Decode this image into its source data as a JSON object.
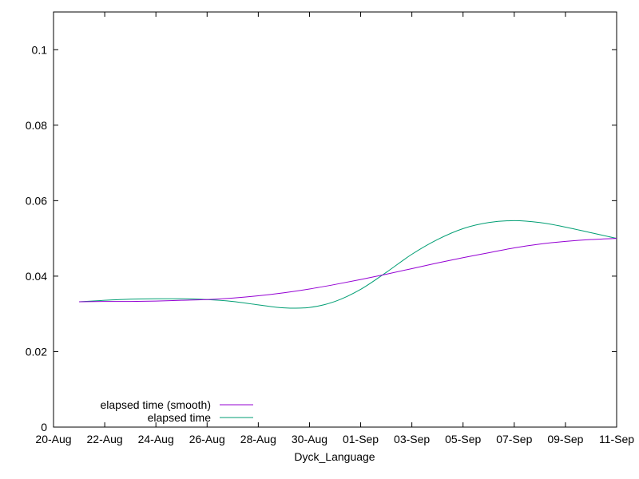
{
  "chart_data": {
    "type": "line",
    "xlabel": "Dyck_Language",
    "ylabel": "",
    "title": "",
    "x_axis": {
      "kind": "date",
      "range": [
        "2023-08-20",
        "2023-09-11"
      ],
      "ticks": [
        {
          "date": "2023-08-20",
          "label": "20-Aug"
        },
        {
          "date": "2023-08-22",
          "label": "22-Aug"
        },
        {
          "date": "2023-08-24",
          "label": "24-Aug"
        },
        {
          "date": "2023-08-26",
          "label": "26-Aug"
        },
        {
          "date": "2023-08-28",
          "label": "28-Aug"
        },
        {
          "date": "2023-08-30",
          "label": "30-Aug"
        },
        {
          "date": "2023-09-01",
          "label": "01-Sep"
        },
        {
          "date": "2023-09-03",
          "label": "03-Sep"
        },
        {
          "date": "2023-09-05",
          "label": "05-Sep"
        },
        {
          "date": "2023-09-07",
          "label": "07-Sep"
        },
        {
          "date": "2023-09-09",
          "label": "09-Sep"
        },
        {
          "date": "2023-09-11",
          "label": "11-Sep"
        }
      ]
    },
    "y_axis": {
      "range": [
        0,
        0.11
      ],
      "ticks": [
        {
          "value": 0,
          "label": "0"
        },
        {
          "value": 0.02,
          "label": "0.02"
        },
        {
          "value": 0.04,
          "label": "0.04"
        },
        {
          "value": 0.06,
          "label": "0.06"
        },
        {
          "value": 0.08,
          "label": "0.08"
        },
        {
          "value": 0.1,
          "label": "0.1"
        }
      ]
    },
    "grid": false,
    "legend_position": "bottom-left",
    "series": [
      {
        "name": "elapsed time (smooth)",
        "color": "#9400d3",
        "points": [
          [
            "2023-08-21",
            0.0332
          ],
          [
            "2023-08-22",
            0.0333
          ],
          [
            "2023-08-23",
            0.0333
          ],
          [
            "2023-08-24",
            0.0334
          ],
          [
            "2023-08-25",
            0.0336
          ],
          [
            "2023-08-26",
            0.0338
          ],
          [
            "2023-08-27",
            0.0342
          ],
          [
            "2023-08-28",
            0.0348
          ],
          [
            "2023-08-29",
            0.0356
          ],
          [
            "2023-08-30",
            0.0366
          ],
          [
            "2023-08-31",
            0.0378
          ],
          [
            "2023-09-01",
            0.0391
          ],
          [
            "2023-09-02",
            0.0405
          ],
          [
            "2023-09-03",
            0.042
          ],
          [
            "2023-09-04",
            0.0435
          ],
          [
            "2023-09-05",
            0.0449
          ],
          [
            "2023-09-06",
            0.0462
          ],
          [
            "2023-09-07",
            0.0475
          ],
          [
            "2023-09-08",
            0.0485
          ],
          [
            "2023-09-09",
            0.0492
          ],
          [
            "2023-09-10",
            0.0497
          ],
          [
            "2023-09-11",
            0.05
          ]
        ]
      },
      {
        "name": "elapsed time",
        "color": "#009e73",
        "points": [
          [
            "2023-08-21",
            0.0332
          ],
          [
            "2023-08-22",
            0.0336
          ],
          [
            "2023-08-23",
            0.0339
          ],
          [
            "2023-08-24",
            0.034
          ],
          [
            "2023-08-25",
            0.034
          ],
          [
            "2023-08-26",
            0.0338
          ],
          [
            "2023-08-27",
            0.0333
          ],
          [
            "2023-08-28",
            0.0324
          ],
          [
            "2023-08-29",
            0.0316
          ],
          [
            "2023-08-30",
            0.0317
          ],
          [
            "2023-08-31",
            0.0333
          ],
          [
            "2023-09-01",
            0.0365
          ],
          [
            "2023-09-02",
            0.041
          ],
          [
            "2023-09-03",
            0.0458
          ],
          [
            "2023-09-04",
            0.0497
          ],
          [
            "2023-09-05",
            0.0526
          ],
          [
            "2023-09-06",
            0.0542
          ],
          [
            "2023-09-07",
            0.0547
          ],
          [
            "2023-09-08",
            0.0542
          ],
          [
            "2023-09-09",
            0.053
          ],
          [
            "2023-09-10",
            0.0515
          ],
          [
            "2023-09-11",
            0.05
          ]
        ]
      }
    ]
  }
}
